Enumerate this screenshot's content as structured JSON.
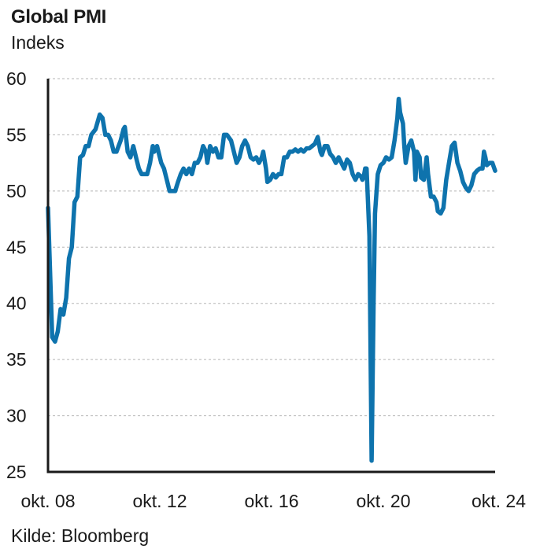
{
  "header": {
    "title": "Global PMI",
    "subtitle": "Indeks"
  },
  "footer": {
    "source": "Kilde: Bloomberg"
  },
  "colors": {
    "line": "#0e73ad",
    "grid": "#b5b5b5",
    "axis": "#1a1a1a"
  },
  "chart_data": {
    "type": "line",
    "title": "Global PMI",
    "ylabel": "Indeks",
    "xlabel": "",
    "ylim": [
      25,
      60
    ],
    "yticks": [
      25,
      30,
      35,
      40,
      45,
      50,
      55,
      60
    ],
    "xlim": [
      2008.75,
      2024.75
    ],
    "xticks": [
      {
        "x": 2008.75,
        "label": "okt. 08"
      },
      {
        "x": 2012.75,
        "label": "okt. 12"
      },
      {
        "x": 2016.75,
        "label": "okt. 16"
      },
      {
        "x": 2020.75,
        "label": "okt. 20"
      },
      {
        "x": 2024.75,
        "label": "okt. 24"
      }
    ],
    "grid": true,
    "series": [
      {
        "name": "",
        "points": [
          [
            2008.75,
            48.5
          ],
          [
            2008.9,
            37.0
          ],
          [
            2009.0,
            36.6
          ],
          [
            2009.1,
            37.5
          ],
          [
            2009.2,
            39.5
          ],
          [
            2009.3,
            39.0
          ],
          [
            2009.4,
            40.5
          ],
          [
            2009.5,
            44.0
          ],
          [
            2009.6,
            45.0
          ],
          [
            2009.7,
            49.0
          ],
          [
            2009.8,
            49.5
          ],
          [
            2009.9,
            53.0
          ],
          [
            2010.0,
            53.2
          ],
          [
            2010.1,
            54.0
          ],
          [
            2010.2,
            54.0
          ],
          [
            2010.3,
            55.0
          ],
          [
            2010.45,
            55.5
          ],
          [
            2010.6,
            56.8
          ],
          [
            2010.7,
            56.5
          ],
          [
            2010.8,
            55.0
          ],
          [
            2010.9,
            55.0
          ],
          [
            2011.0,
            54.5
          ],
          [
            2011.1,
            53.5
          ],
          [
            2011.2,
            53.5
          ],
          [
            2011.35,
            54.5
          ],
          [
            2011.45,
            55.5
          ],
          [
            2011.5,
            55.7
          ],
          [
            2011.6,
            53.5
          ],
          [
            2011.7,
            53.0
          ],
          [
            2011.8,
            54.0
          ],
          [
            2011.9,
            53.0
          ],
          [
            2012.0,
            52.0
          ],
          [
            2012.1,
            51.5
          ],
          [
            2012.2,
            51.5
          ],
          [
            2012.3,
            51.5
          ],
          [
            2012.4,
            52.5
          ],
          [
            2012.5,
            54.0
          ],
          [
            2012.55,
            53.5
          ],
          [
            2012.65,
            54.0
          ],
          [
            2012.8,
            52.5
          ],
          [
            2012.9,
            52.0
          ],
          [
            2013.0,
            51.0
          ],
          [
            2013.1,
            50.0
          ],
          [
            2013.2,
            50.0
          ],
          [
            2013.3,
            50.0
          ],
          [
            2013.4,
            50.8
          ],
          [
            2013.5,
            51.5
          ],
          [
            2013.6,
            52.0
          ],
          [
            2013.7,
            51.5
          ],
          [
            2013.8,
            52.0
          ],
          [
            2013.9,
            51.5
          ],
          [
            2014.0,
            52.5
          ],
          [
            2014.1,
            52.5
          ],
          [
            2014.2,
            53.0
          ],
          [
            2014.3,
            54.0
          ],
          [
            2014.4,
            53.5
          ],
          [
            2014.45,
            52.5
          ],
          [
            2014.55,
            54.0
          ],
          [
            2014.65,
            53.5
          ],
          [
            2014.75,
            53.8
          ],
          [
            2014.85,
            53.0
          ],
          [
            2014.95,
            53.0
          ],
          [
            2015.05,
            55.0
          ],
          [
            2015.15,
            55.0
          ],
          [
            2015.3,
            54.5
          ],
          [
            2015.4,
            53.5
          ],
          [
            2015.5,
            52.5
          ],
          [
            2015.6,
            53.0
          ],
          [
            2015.7,
            54.0
          ],
          [
            2015.8,
            54.5
          ],
          [
            2015.9,
            54.0
          ],
          [
            2016.0,
            53.0
          ],
          [
            2016.1,
            52.8
          ],
          [
            2016.2,
            53.0
          ],
          [
            2016.3,
            52.5
          ],
          [
            2016.4,
            53.0
          ],
          [
            2016.45,
            53.5
          ],
          [
            2016.55,
            52.0
          ],
          [
            2016.6,
            50.8
          ],
          [
            2016.7,
            51.0
          ],
          [
            2016.8,
            51.5
          ],
          [
            2016.9,
            51.2
          ],
          [
            2017.0,
            51.5
          ],
          [
            2017.1,
            51.5
          ],
          [
            2017.2,
            53.0
          ],
          [
            2017.3,
            53.0
          ],
          [
            2017.4,
            53.5
          ],
          [
            2017.5,
            53.5
          ],
          [
            2017.6,
            53.7
          ],
          [
            2017.7,
            53.5
          ],
          [
            2017.8,
            53.7
          ],
          [
            2017.9,
            53.5
          ],
          [
            2018.0,
            53.8
          ],
          [
            2018.1,
            53.8
          ],
          [
            2018.2,
            54.0
          ],
          [
            2018.3,
            54.2
          ],
          [
            2018.4,
            54.8
          ],
          [
            2018.5,
            53.5
          ],
          [
            2018.55,
            53.2
          ],
          [
            2018.65,
            54.0
          ],
          [
            2018.75,
            54.0
          ],
          [
            2018.85,
            53.3
          ],
          [
            2018.95,
            53.0
          ],
          [
            2019.05,
            52.5
          ],
          [
            2019.15,
            53.0
          ],
          [
            2019.25,
            52.5
          ],
          [
            2019.35,
            52.0
          ],
          [
            2019.45,
            52.8
          ],
          [
            2019.55,
            52.5
          ],
          [
            2019.65,
            51.5
          ],
          [
            2019.75,
            51.0
          ],
          [
            2019.85,
            51.5
          ],
          [
            2019.95,
            51.3
          ],
          [
            2020.0,
            51.0
          ],
          [
            2020.05,
            51.3
          ],
          [
            2020.1,
            52.0
          ],
          [
            2020.15,
            52.0
          ],
          [
            2020.25,
            46.0
          ],
          [
            2020.33,
            26.0
          ],
          [
            2020.4,
            40.0
          ],
          [
            2020.45,
            48.0
          ],
          [
            2020.55,
            51.5
          ],
          [
            2020.65,
            52.3
          ],
          [
            2020.75,
            52.5
          ],
          [
            2020.85,
            53.0
          ],
          [
            2020.95,
            52.8
          ],
          [
            2021.05,
            53.0
          ],
          [
            2021.15,
            54.5
          ],
          [
            2021.25,
            56.5
          ],
          [
            2021.3,
            58.2
          ],
          [
            2021.35,
            57.0
          ],
          [
            2021.45,
            56.0
          ],
          [
            2021.5,
            54.0
          ],
          [
            2021.55,
            52.5
          ],
          [
            2021.65,
            54.0
          ],
          [
            2021.75,
            54.5
          ],
          [
            2021.85,
            53.5
          ],
          [
            2021.9,
            51.0
          ],
          [
            2021.95,
            53.5
          ],
          [
            2022.05,
            53.0
          ],
          [
            2022.1,
            51.2
          ],
          [
            2022.2,
            51.0
          ],
          [
            2022.3,
            53.0
          ],
          [
            2022.35,
            51.5
          ],
          [
            2022.45,
            49.5
          ],
          [
            2022.55,
            49.5
          ],
          [
            2022.65,
            49.0
          ],
          [
            2022.7,
            48.2
          ],
          [
            2022.8,
            48.0
          ],
          [
            2022.9,
            48.5
          ],
          [
            2023.0,
            51.0
          ],
          [
            2023.1,
            52.5
          ],
          [
            2023.2,
            54.0
          ],
          [
            2023.3,
            54.3
          ],
          [
            2023.4,
            52.5
          ],
          [
            2023.5,
            51.8
          ],
          [
            2023.6,
            50.8
          ],
          [
            2023.7,
            50.3
          ],
          [
            2023.8,
            50.0
          ],
          [
            2023.9,
            50.5
          ],
          [
            2024.0,
            51.5
          ],
          [
            2024.1,
            51.8
          ],
          [
            2024.2,
            52.0
          ],
          [
            2024.3,
            52.0
          ],
          [
            2024.35,
            53.5
          ],
          [
            2024.4,
            53.0
          ],
          [
            2024.45,
            52.3
          ],
          [
            2024.55,
            52.5
          ],
          [
            2024.65,
            52.5
          ],
          [
            2024.75,
            51.8
          ]
        ]
      }
    ]
  }
}
